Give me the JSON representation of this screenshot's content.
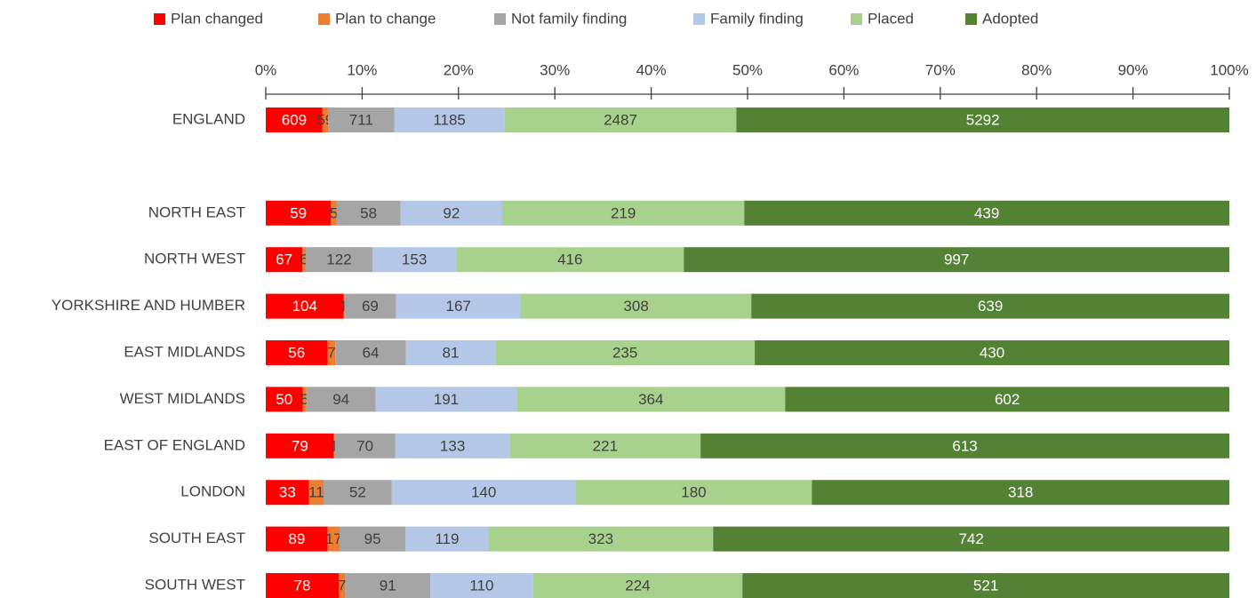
{
  "chart_data": {
    "type": "stacked_bar_100",
    "orientation": "horizontal",
    "categories": [
      "ENGLAND",
      null,
      "NORTH EAST",
      "NORTH WEST",
      "YORKSHIRE AND HUMBER",
      "EAST MIDLANDS",
      "WEST MIDLANDS",
      "EAST OF ENGLAND",
      "LONDON",
      "SOUTH EAST",
      "SOUTH WEST"
    ],
    "series": [
      {
        "name": "Plan changed",
        "color": "#ff0000",
        "values": [
          609,
          null,
          59,
          67,
          104,
          56,
          50,
          79,
          33,
          89,
          78
        ]
      },
      {
        "name": "Plan to change",
        "color": "#ed7d31",
        "values": [
          59,
          null,
          5,
          6,
          1,
          7,
          5,
          1,
          11,
          17,
          7
        ]
      },
      {
        "name": "Not family finding",
        "color": "#a5a5a5",
        "values": [
          711,
          null,
          58,
          122,
          69,
          64,
          94,
          70,
          52,
          95,
          91
        ]
      },
      {
        "name": "Family finding",
        "color": "#b4c7e7",
        "values": [
          1185,
          null,
          92,
          153,
          167,
          81,
          191,
          133,
          140,
          119,
          110
        ]
      },
      {
        "name": "Placed",
        "color": "#a9d18e",
        "values": [
          2487,
          null,
          219,
          416,
          308,
          235,
          364,
          221,
          180,
          323,
          224
        ]
      },
      {
        "name": "Adopted",
        "color": "#548235",
        "values": [
          5292,
          null,
          439,
          997,
          639,
          430,
          602,
          613,
          318,
          742,
          521
        ]
      }
    ],
    "xlim": [
      0,
      100
    ],
    "xticks": [
      {
        "value": 0,
        "label": "0%"
      },
      {
        "value": 10,
        "label": "10%"
      },
      {
        "value": 20,
        "label": "20%"
      },
      {
        "value": 30,
        "label": "30%"
      },
      {
        "value": 40,
        "label": "40%"
      },
      {
        "value": 50,
        "label": "50%"
      },
      {
        "value": 60,
        "label": "60%"
      },
      {
        "value": 70,
        "label": "70%"
      },
      {
        "value": 80,
        "label": "80%"
      },
      {
        "value": 90,
        "label": "90%"
      },
      {
        "value": 100,
        "label": "100%"
      }
    ],
    "legend": "top"
  }
}
